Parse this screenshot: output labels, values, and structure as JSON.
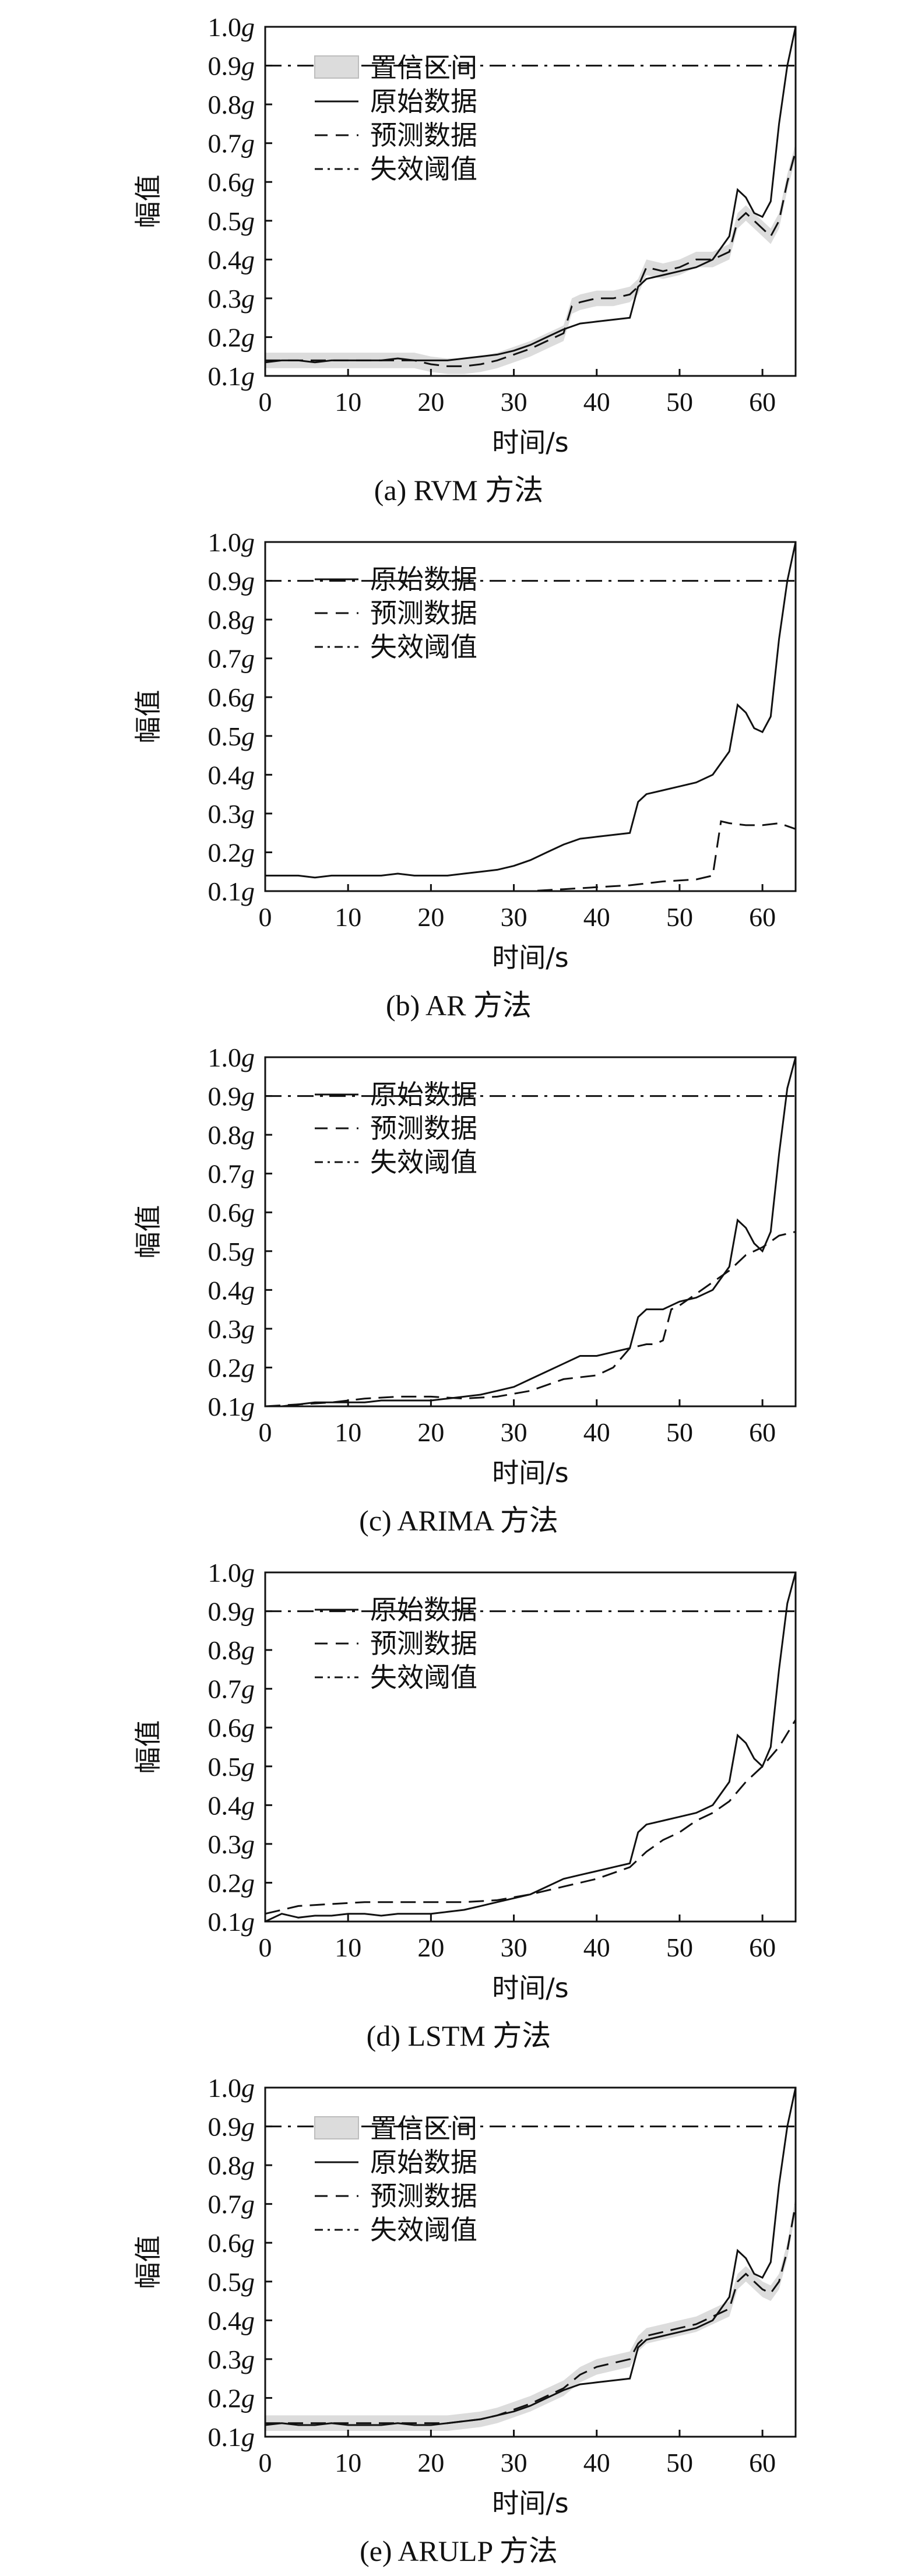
{
  "chart_data": [
    {
      "type": "line",
      "caption": "(a) RVM 方法",
      "xlabel": "时间/s",
      "ylabel": "幅值",
      "xlim": [
        0,
        64
      ],
      "ylim": [
        0.1,
        1.0
      ],
      "xticks": [
        "0",
        "10",
        "20",
        "30",
        "40",
        "50",
        "60"
      ],
      "yticks": [
        "0.1g",
        "0.2g",
        "0.3g",
        "0.4g",
        "0.5g",
        "0.6g",
        "0.7g",
        "0.8g",
        "0.9g",
        "1.0g"
      ],
      "legend": [
        "置信区间",
        "原始数据",
        "预测数据",
        "失效阈值"
      ],
      "series": [
        {
          "name": "原始数据",
          "style": "solid",
          "x": [
            0,
            2,
            4,
            6,
            8,
            10,
            12,
            14,
            16,
            18,
            20,
            22,
            24,
            26,
            28,
            30,
            32,
            34,
            36,
            38,
            40,
            42,
            44,
            45,
            46,
            48,
            50,
            52,
            54,
            56,
            57,
            58,
            59,
            60,
            61,
            62,
            63,
            64
          ],
          "y": [
            0.135,
            0.14,
            0.14,
            0.135,
            0.14,
            0.14,
            0.14,
            0.14,
            0.145,
            0.14,
            0.14,
            0.14,
            0.145,
            0.15,
            0.155,
            0.165,
            0.18,
            0.2,
            0.22,
            0.235,
            0.24,
            0.245,
            0.25,
            0.33,
            0.35,
            0.36,
            0.37,
            0.38,
            0.4,
            0.46,
            0.58,
            0.56,
            0.52,
            0.51,
            0.55,
            0.75,
            0.9,
            1.0
          ]
        },
        {
          "name": "预测数据",
          "style": "dashed",
          "x": [
            0,
            2,
            4,
            6,
            8,
            10,
            12,
            14,
            16,
            18,
            20,
            22,
            24,
            26,
            28,
            30,
            32,
            34,
            36,
            37,
            38,
            40,
            42,
            44,
            45,
            46,
            48,
            50,
            52,
            54,
            56,
            57,
            58,
            59,
            60,
            61,
            62,
            63,
            64
          ],
          "y": [
            0.14,
            0.14,
            0.14,
            0.14,
            0.14,
            0.14,
            0.14,
            0.14,
            0.14,
            0.14,
            0.13,
            0.125,
            0.125,
            0.13,
            0.14,
            0.155,
            0.17,
            0.19,
            0.21,
            0.28,
            0.29,
            0.3,
            0.3,
            0.31,
            0.33,
            0.38,
            0.37,
            0.38,
            0.4,
            0.4,
            0.42,
            0.5,
            0.52,
            0.5,
            0.48,
            0.46,
            0.5,
            0.6,
            0.68
          ]
        },
        {
          "name": "失效阈值",
          "style": "dashdot",
          "x": [
            0,
            64
          ],
          "y": [
            0.9,
            0.9
          ]
        }
      ],
      "band": {
        "name": "置信区间",
        "halfwidth": 0.02
      }
    },
    {
      "type": "line",
      "caption": "(b) AR 方法",
      "xlabel": "时间/s",
      "ylabel": "幅值",
      "xlim": [
        0,
        64
      ],
      "ylim": [
        0.1,
        1.0
      ],
      "xticks": [
        "0",
        "10",
        "20",
        "30",
        "40",
        "50",
        "60"
      ],
      "yticks": [
        "0.1g",
        "0.2g",
        "0.3g",
        "0.4g",
        "0.5g",
        "0.6g",
        "0.7g",
        "0.8g",
        "0.9g",
        "1.0g"
      ],
      "legend": [
        "原始数据",
        "预测数据",
        "失效阈值"
      ],
      "series": [
        {
          "name": "原始数据",
          "style": "solid",
          "x": [
            0,
            2,
            4,
            6,
            8,
            10,
            12,
            14,
            16,
            18,
            20,
            22,
            24,
            26,
            28,
            30,
            32,
            34,
            36,
            38,
            40,
            42,
            44,
            45,
            46,
            48,
            50,
            52,
            54,
            56,
            57,
            58,
            59,
            60,
            61,
            62,
            63,
            64
          ],
          "y": [
            0.14,
            0.14,
            0.14,
            0.135,
            0.14,
            0.14,
            0.14,
            0.14,
            0.145,
            0.14,
            0.14,
            0.14,
            0.145,
            0.15,
            0.155,
            0.165,
            0.18,
            0.2,
            0.22,
            0.235,
            0.24,
            0.245,
            0.25,
            0.33,
            0.35,
            0.36,
            0.37,
            0.38,
            0.4,
            0.46,
            0.58,
            0.56,
            0.52,
            0.51,
            0.55,
            0.75,
            0.9,
            1.0
          ]
        },
        {
          "name": "预测数据",
          "style": "dashed",
          "x": [
            0,
            4,
            8,
            12,
            16,
            20,
            24,
            28,
            32,
            36,
            40,
            44,
            48,
            52,
            54,
            55,
            56,
            58,
            60,
            62,
            64
          ],
          "y": [
            0.06,
            0.065,
            0.07,
            0.08,
            0.085,
            0.09,
            0.095,
            0.1,
            0.1,
            0.105,
            0.11,
            0.115,
            0.125,
            0.13,
            0.14,
            0.28,
            0.275,
            0.27,
            0.27,
            0.275,
            0.26
          ]
        },
        {
          "name": "失效阈值",
          "style": "dashdot",
          "x": [
            0,
            64
          ],
          "y": [
            0.9,
            0.9
          ]
        }
      ]
    },
    {
      "type": "line",
      "caption": "(c) ARIMA 方法",
      "xlabel": "时间/s",
      "ylabel": "幅值",
      "xlim": [
        0,
        64
      ],
      "ylim": [
        0.1,
        1.0
      ],
      "xticks": [
        "0",
        "10",
        "20",
        "30",
        "40",
        "50",
        "60"
      ],
      "yticks": [
        "0.1g",
        "0.2g",
        "0.3g",
        "0.4g",
        "0.5g",
        "0.6g",
        "0.7g",
        "0.8g",
        "0.9g",
        "1.0g"
      ],
      "legend": [
        "原始数据",
        "预测数据",
        "失效阈值"
      ],
      "series": [
        {
          "name": "原始数据",
          "style": "solid",
          "x": [
            0,
            2,
            4,
            6,
            8,
            10,
            12,
            14,
            16,
            18,
            20,
            22,
            24,
            26,
            28,
            30,
            32,
            34,
            36,
            38,
            40,
            42,
            44,
            45,
            46,
            48,
            50,
            52,
            54,
            56,
            57,
            58,
            59,
            60,
            61,
            62,
            63,
            64
          ],
          "y": [
            0.1,
            0.1,
            0.105,
            0.11,
            0.11,
            0.11,
            0.11,
            0.115,
            0.115,
            0.115,
            0.115,
            0.12,
            0.125,
            0.13,
            0.14,
            0.15,
            0.17,
            0.19,
            0.21,
            0.23,
            0.23,
            0.24,
            0.25,
            0.33,
            0.35,
            0.35,
            0.37,
            0.38,
            0.4,
            0.46,
            0.58,
            0.56,
            0.52,
            0.5,
            0.55,
            0.75,
            0.92,
            1.0
          ]
        },
        {
          "name": "预测数据",
          "style": "dashed",
          "x": [
            0,
            4,
            8,
            12,
            16,
            20,
            24,
            28,
            32,
            36,
            40,
            42,
            44,
            46,
            47,
            48,
            49,
            50,
            52,
            54,
            56,
            58,
            60,
            62,
            64
          ],
          "y": [
            0.1,
            0.105,
            0.11,
            0.12,
            0.125,
            0.125,
            0.12,
            0.125,
            0.14,
            0.17,
            0.18,
            0.2,
            0.25,
            0.26,
            0.26,
            0.27,
            0.35,
            0.36,
            0.39,
            0.42,
            0.45,
            0.49,
            0.51,
            0.54,
            0.55
          ]
        },
        {
          "name": "失效阈值",
          "style": "dashdot",
          "x": [
            0,
            64
          ],
          "y": [
            0.9,
            0.9
          ]
        }
      ]
    },
    {
      "type": "line",
      "caption": "(d) LSTM 方法",
      "xlabel": "时间/s",
      "ylabel": "幅值",
      "xlim": [
        0,
        64
      ],
      "ylim": [
        0.1,
        1.0
      ],
      "xticks": [
        "0",
        "10",
        "20",
        "30",
        "40",
        "50",
        "60"
      ],
      "yticks": [
        "0.1g",
        "0.2g",
        "0.3g",
        "0.4g",
        "0.5g",
        "0.6g",
        "0.7g",
        "0.8g",
        "0.9g",
        "1.0g"
      ],
      "legend": [
        "原始数据",
        "预测数据",
        "失效阈值"
      ],
      "series": [
        {
          "name": "原始数据",
          "style": "solid",
          "x": [
            0,
            2,
            4,
            6,
            8,
            10,
            12,
            14,
            16,
            18,
            20,
            22,
            24,
            26,
            28,
            30,
            32,
            34,
            36,
            38,
            40,
            42,
            44,
            45,
            46,
            48,
            50,
            52,
            54,
            56,
            57,
            58,
            59,
            60,
            61,
            62,
            63,
            64
          ],
          "y": [
            0.1,
            0.12,
            0.11,
            0.115,
            0.115,
            0.12,
            0.12,
            0.115,
            0.12,
            0.12,
            0.12,
            0.125,
            0.13,
            0.14,
            0.15,
            0.16,
            0.17,
            0.19,
            0.21,
            0.22,
            0.23,
            0.24,
            0.25,
            0.33,
            0.35,
            0.36,
            0.37,
            0.38,
            0.4,
            0.46,
            0.58,
            0.56,
            0.52,
            0.5,
            0.55,
            0.75,
            0.92,
            1.0
          ]
        },
        {
          "name": "预测数据",
          "style": "dashed",
          "x": [
            0,
            4,
            8,
            12,
            16,
            20,
            24,
            28,
            32,
            36,
            40,
            44,
            46,
            48,
            50,
            52,
            54,
            56,
            58,
            60,
            62,
            64
          ],
          "y": [
            0.12,
            0.14,
            0.145,
            0.15,
            0.15,
            0.15,
            0.15,
            0.155,
            0.17,
            0.19,
            0.21,
            0.24,
            0.28,
            0.31,
            0.33,
            0.36,
            0.38,
            0.41,
            0.46,
            0.5,
            0.55,
            0.62
          ]
        },
        {
          "name": "失效阈值",
          "style": "dashdot",
          "x": [
            0,
            64
          ],
          "y": [
            0.9,
            0.9
          ]
        }
      ]
    },
    {
      "type": "line",
      "caption": "(e) ARULP 方法",
      "xlabel": "时间/s",
      "ylabel": "幅值",
      "xlim": [
        0,
        64
      ],
      "ylim": [
        0.1,
        1.0
      ],
      "xticks": [
        "0",
        "10",
        "20",
        "30",
        "40",
        "50",
        "60"
      ],
      "yticks": [
        "0.1g",
        "0.2g",
        "0.3g",
        "0.4g",
        "0.5g",
        "0.6g",
        "0.7g",
        "0.8g",
        "0.9g",
        "1.0g"
      ],
      "legend": [
        "置信区间",
        "原始数据",
        "预测数据",
        "失效阈值"
      ],
      "series": [
        {
          "name": "原始数据",
          "style": "solid",
          "x": [
            0,
            2,
            4,
            6,
            8,
            10,
            12,
            14,
            16,
            18,
            20,
            22,
            24,
            26,
            28,
            30,
            32,
            34,
            36,
            38,
            40,
            42,
            44,
            45,
            46,
            48,
            50,
            52,
            54,
            56,
            57,
            58,
            59,
            60,
            61,
            62,
            63,
            64
          ],
          "y": [
            0.13,
            0.135,
            0.13,
            0.13,
            0.135,
            0.13,
            0.13,
            0.13,
            0.135,
            0.13,
            0.13,
            0.135,
            0.14,
            0.145,
            0.155,
            0.165,
            0.18,
            0.2,
            0.22,
            0.235,
            0.24,
            0.245,
            0.25,
            0.33,
            0.35,
            0.36,
            0.37,
            0.38,
            0.4,
            0.46,
            0.58,
            0.56,
            0.52,
            0.51,
            0.55,
            0.75,
            0.9,
            1.0
          ]
        },
        {
          "name": "预测数据",
          "style": "dashed",
          "x": [
            0,
            2,
            4,
            6,
            8,
            10,
            12,
            14,
            16,
            18,
            20,
            22,
            24,
            26,
            28,
            30,
            32,
            34,
            36,
            38,
            40,
            42,
            44,
            45,
            46,
            48,
            50,
            52,
            54,
            56,
            57,
            58,
            59,
            60,
            61,
            62,
            63,
            64
          ],
          "y": [
            0.135,
            0.135,
            0.135,
            0.135,
            0.135,
            0.135,
            0.135,
            0.135,
            0.135,
            0.135,
            0.135,
            0.135,
            0.14,
            0.145,
            0.155,
            0.17,
            0.185,
            0.205,
            0.225,
            0.26,
            0.28,
            0.29,
            0.3,
            0.34,
            0.36,
            0.37,
            0.38,
            0.39,
            0.41,
            0.43,
            0.5,
            0.52,
            0.5,
            0.48,
            0.47,
            0.5,
            0.58,
            0.7
          ]
        },
        {
          "name": "失效阈值",
          "style": "dashdot",
          "x": [
            0,
            64
          ],
          "y": [
            0.9,
            0.9
          ]
        }
      ],
      "band": {
        "name": "置信区间",
        "halfwidth": 0.02
      }
    }
  ]
}
